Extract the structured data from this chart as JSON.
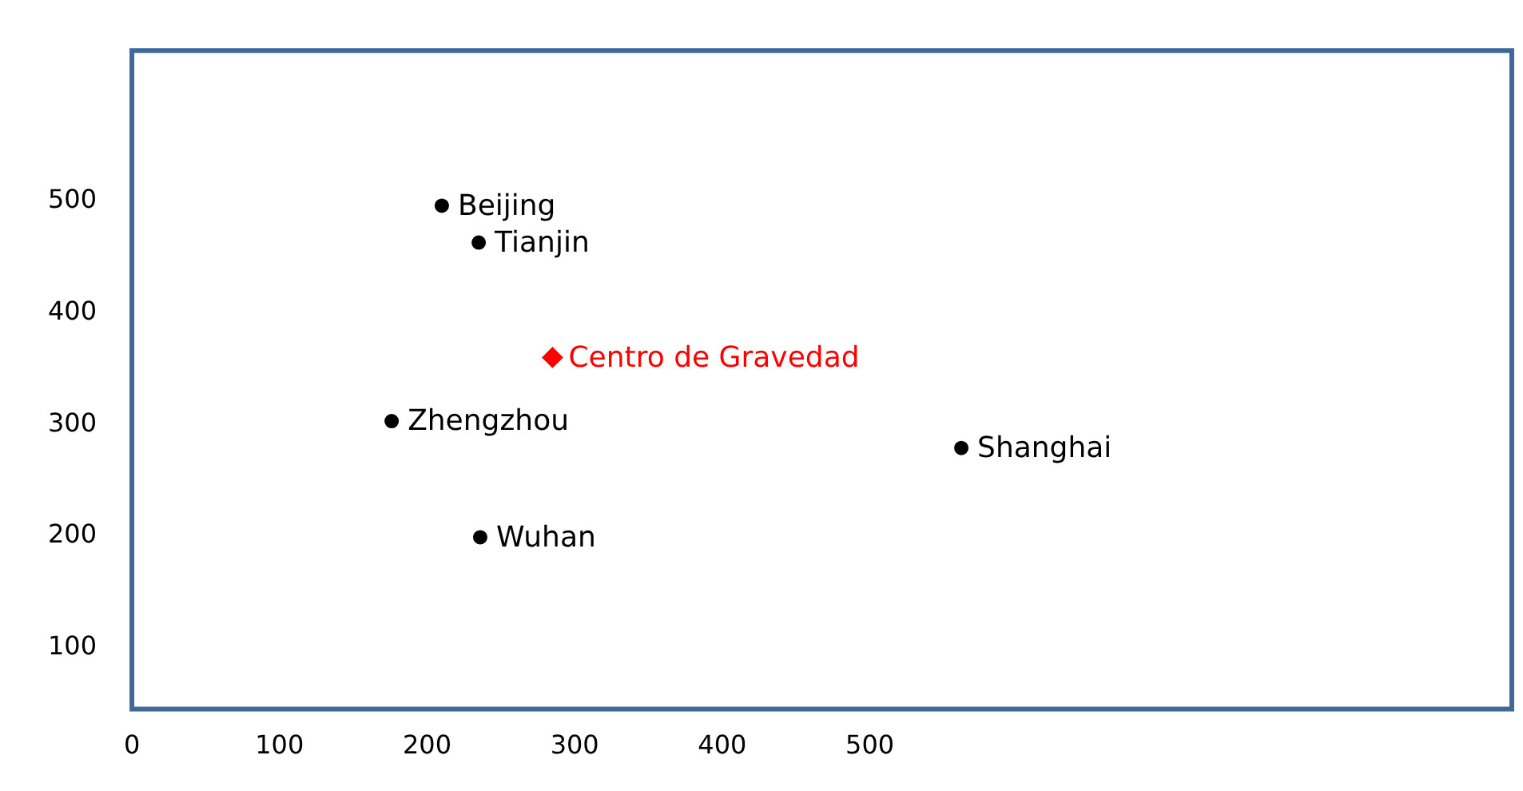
{
  "chart_data": {
    "type": "scatter",
    "xlim": [
      0,
      935
    ],
    "ylim": [
      45,
      635
    ],
    "xticks": [
      0,
      100,
      200,
      300,
      400,
      500
    ],
    "yticks": [
      100,
      200,
      300,
      400,
      500
    ],
    "grid": false,
    "legend": false,
    "marker": "circle",
    "series": [
      {
        "name": "Beijing",
        "color": "#000000",
        "x": [
          210
        ],
        "values": [
          496
        ]
      },
      {
        "name": "Tianjin",
        "color": "#000000",
        "x": [
          235
        ],
        "values": [
          463
        ]
      },
      {
        "name": "Centro de Gravedad",
        "color": "#ff0000",
        "x": [
          285
        ],
        "values": [
          360
        ],
        "marker": "diamond"
      },
      {
        "name": "Zhengzhou",
        "color": "#000000",
        "x": [
          176
        ],
        "values": [
          303
        ]
      },
      {
        "name": "Shanghai",
        "color": "#000000",
        "x": [
          562
        ],
        "values": [
          279
        ]
      },
      {
        "name": "Wuhan",
        "color": "#000000",
        "x": [
          236
        ],
        "values": [
          199
        ]
      }
    ]
  }
}
